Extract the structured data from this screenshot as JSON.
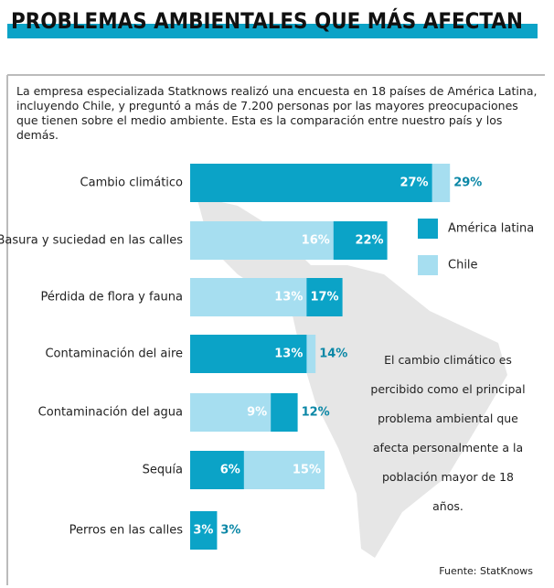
{
  "chart_data": {
    "type": "overlap-bar",
    "title": "PROBLEMAS AMBIENTALES QUE MÁS AFECTAN",
    "subtitle": "La empresa especializada Statknows realizó una encuesta en 18 países de América Latina, incluyendo Chile, y preguntó a más de 7.200 personas por las mayores preocupaciones que tienen sobre el medio ambiente. Esta es la comparación entre nuestro país y los demás.",
    "categories": [
      "Cambio climático",
      "Basura y suciedad en las calles",
      "Pérdida de flora y fauna",
      "Contaminación del aire",
      "Contaminación del agua",
      "Sequía",
      "Perros en las calles"
    ],
    "series": [
      {
        "name": "América latina",
        "color": "#0ba3c7",
        "values": [
          27,
          22,
          17,
          13,
          12,
          6,
          3
        ],
        "value_labels": [
          "27%",
          "22%",
          "17%",
          "13%",
          "12%",
          "6%",
          "3%"
        ]
      },
      {
        "name": "Chile",
        "color": "#a6def0",
        "values": [
          29,
          16,
          13,
          14,
          9,
          15,
          3
        ],
        "value_labels": [
          "29%",
          "16%",
          "13%",
          "14%",
          "9%",
          "15%",
          "3%"
        ]
      }
    ],
    "annotation": "El cambio climático es percibido como el principal problema ambiental que afecta personalmente a la población mayor de 18 años.",
    "source": "Fuente: StatKnows"
  }
}
